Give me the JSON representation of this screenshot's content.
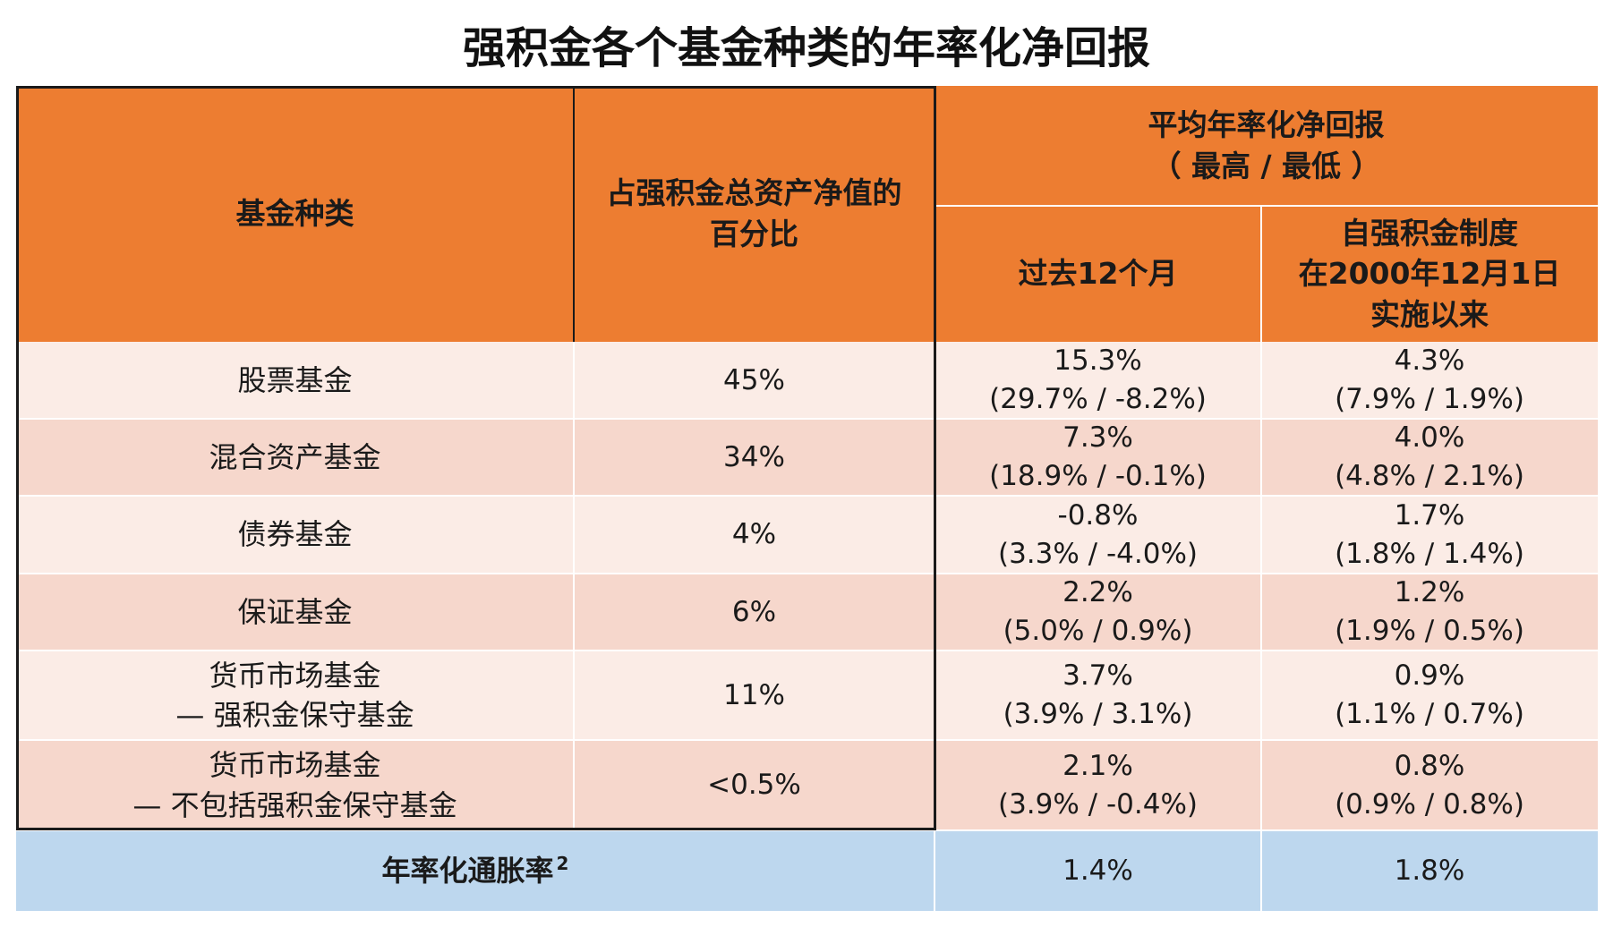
{
  "title": "强积金各个基金种类的年率化净回报",
  "chart_data": {
    "type": "table",
    "headers": {
      "fund_type": "基金种类",
      "pct_nav_line1": "占强积金总资产净值的",
      "pct_nav_line2": "百分比",
      "avg_return_line1": "平均年率化净回报",
      "avg_return_line2": "（ 最高 / 最低 ）",
      "past12": "过去12个月",
      "since_line1": "自强积金制度",
      "since_line2": "在2000年12月1日",
      "since_line3": "实施以来"
    },
    "rows": [
      {
        "fund": [
          "股票基金"
        ],
        "pct": "45%",
        "past12": "15.3%",
        "past12_range": "(29.7% / -8.2%)",
        "since": "4.3%",
        "since_range": "(7.9% / 1.9%)"
      },
      {
        "fund": [
          "混合资产基金"
        ],
        "pct": "34%",
        "past12": "7.3%",
        "past12_range": "(18.9% / -0.1%)",
        "since": "4.0%",
        "since_range": "(4.8% / 2.1%)"
      },
      {
        "fund": [
          "债券基金"
        ],
        "pct": "4%",
        "past12": "-0.8%",
        "past12_range": "(3.3% / -4.0%)",
        "since": "1.7%",
        "since_range": "(1.8% / 1.4%)"
      },
      {
        "fund": [
          "保证基金"
        ],
        "pct": "6%",
        "past12": "2.2%",
        "past12_range": "(5.0% / 0.9%)",
        "since": "1.2%",
        "since_range": "(1.9% / 0.5%)"
      },
      {
        "fund": [
          "货币市场基金",
          "— 强积金保守基金"
        ],
        "pct": "11%",
        "past12": "3.7%",
        "past12_range": "(3.9% / 3.1%)",
        "since": "0.9%",
        "since_range": "(1.1% / 0.7%)"
      },
      {
        "fund": [
          "货币市场基金",
          "— 不包括强积金保守基金"
        ],
        "pct": "<0.5%",
        "past12": "2.1%",
        "past12_range": "(3.9% / -0.4%)",
        "since": "0.8%",
        "since_range": "(0.9% / 0.8%)"
      }
    ],
    "inflation": {
      "label": "年率化通胀率",
      "footnote": "2",
      "past12": "1.4%",
      "since": "1.8%"
    }
  },
  "colors": {
    "header": "#ed7d31",
    "row_light": "#fbece6",
    "row_dark": "#f6d7cc",
    "inflation_row": "#bdd7ee"
  }
}
